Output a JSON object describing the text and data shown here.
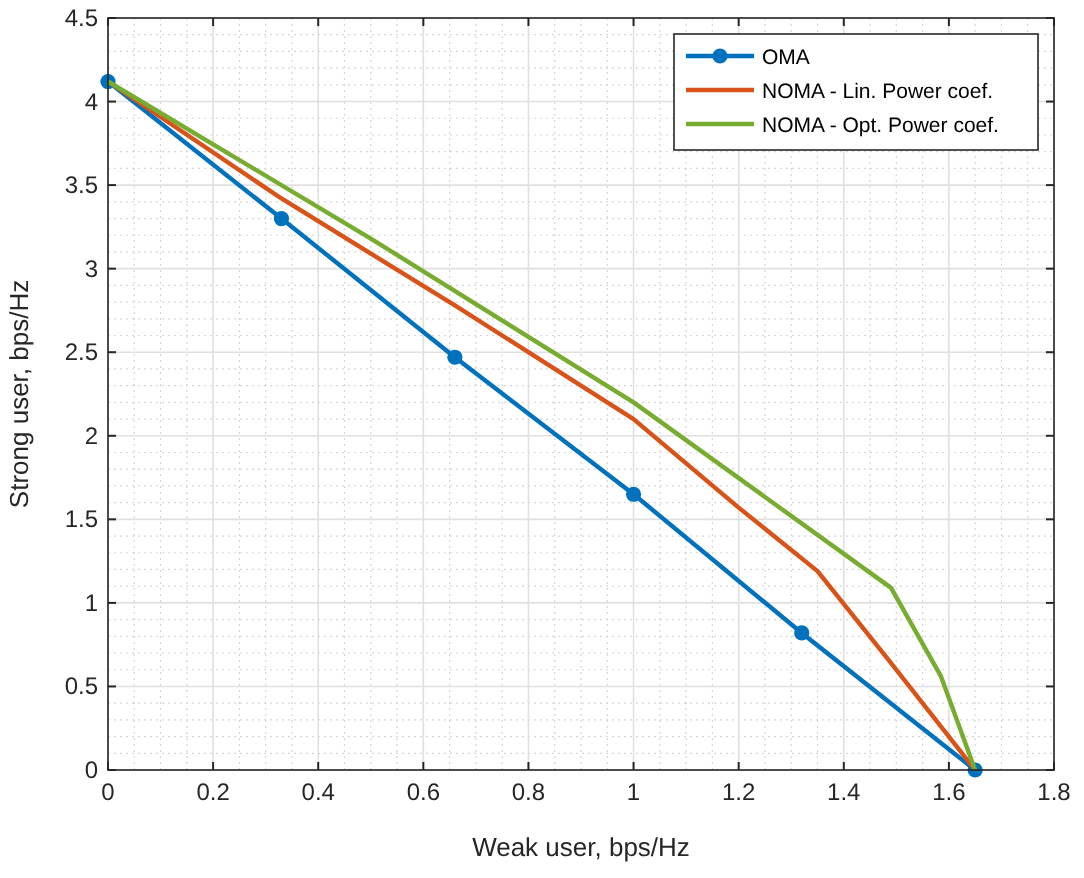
{
  "chart_data": {
    "type": "line",
    "xlabel": "Weak user, bps/Hz",
    "ylabel": "Strong user, bps/Hz",
    "xlim": [
      0,
      1.8
    ],
    "ylim": [
      0,
      4.5
    ],
    "xticks": [
      0,
      0.2,
      0.4,
      0.6,
      0.8,
      1,
      1.2,
      1.4,
      1.6,
      1.8
    ],
    "yticks": [
      0,
      0.5,
      1,
      1.5,
      2,
      2.5,
      3,
      3.5,
      4,
      4.5
    ],
    "grid": true,
    "legend": "top right",
    "line_style": "solid",
    "series": [
      {
        "name": "OMA",
        "color": "#0072bd",
        "marker": "circle",
        "x": [
          0,
          0.33,
          0.66,
          1.0,
          1.32,
          1.65
        ],
        "values": [
          4.12,
          3.3,
          2.47,
          1.65,
          0.82,
          0
        ]
      },
      {
        "name": "NOMA - Lin. Power coef.",
        "color": "#d95319",
        "marker": "none",
        "x": [
          0,
          0.33,
          0.66,
          1.0,
          1.2,
          1.35,
          1.49,
          1.65
        ],
        "values": [
          4.12,
          3.42,
          2.78,
          2.1,
          1.57,
          1.19,
          0.64,
          0
        ]
      },
      {
        "name": "NOMA - Opt. Power coef.",
        "color": "#77ac30",
        "marker": "none",
        "x": [
          0,
          0.5,
          1.0,
          1.49,
          1.585,
          1.65
        ],
        "values": [
          4.12,
          3.18,
          2.2,
          1.09,
          0.56,
          0
        ]
      }
    ]
  }
}
